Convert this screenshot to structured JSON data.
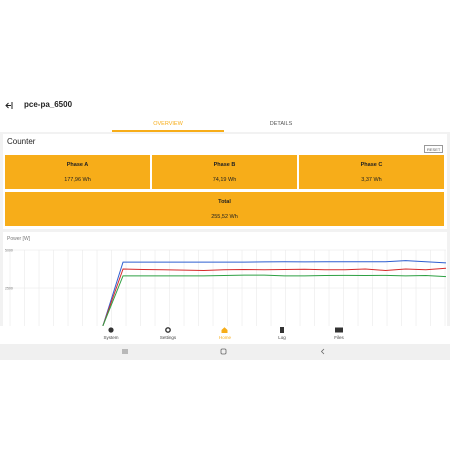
{
  "header": {
    "title": "pce-pa_6500"
  },
  "tabs": [
    "OVERVIEW",
    "DETAILS"
  ],
  "counter": {
    "title": "Counter",
    "reset": "RESET",
    "phases": [
      {
        "label": "Phase A",
        "value": "177,96 Wh"
      },
      {
        "label": "Phase B",
        "value": "74,19 Wh"
      },
      {
        "label": "Phase C",
        "value": "3,37 Wh"
      }
    ],
    "total": {
      "label": "Total",
      "value": "255,52 Wh"
    }
  },
  "chart_data": {
    "type": "line",
    "title": "Power [W]",
    "x": [
      0,
      1,
      2,
      3,
      4,
      5,
      6,
      7,
      8,
      9,
      10,
      11,
      12,
      13,
      14,
      15,
      16,
      17
    ],
    "xlim": [
      -4.6,
      17
    ],
    "ylim": [
      0,
      5000
    ],
    "yticks": [
      2500,
      5000
    ],
    "grid": true,
    "series": [
      {
        "color": "#2f5fd0",
        "values": [
          0,
          4200,
          4200,
          4200,
          4200,
          4200,
          4200,
          4200,
          4220,
          4230,
          4220,
          4230,
          4230,
          4230,
          4230,
          4300,
          4230,
          4150
        ]
      },
      {
        "color": "#d62a2a",
        "values": [
          0,
          3750,
          3720,
          3700,
          3680,
          3650,
          3700,
          3720,
          3700,
          3720,
          3730,
          3700,
          3700,
          3750,
          3650,
          3750,
          3700,
          3800
        ]
      },
      {
        "color": "#2ea043",
        "values": [
          0,
          3300,
          3300,
          3300,
          3300,
          3300,
          3320,
          3350,
          3350,
          3300,
          3300,
          3320,
          3330,
          3320,
          3330,
          3300,
          3320,
          3250
        ]
      }
    ]
  },
  "nav": [
    "System",
    "Settings",
    "Home",
    "Log",
    "Files"
  ]
}
